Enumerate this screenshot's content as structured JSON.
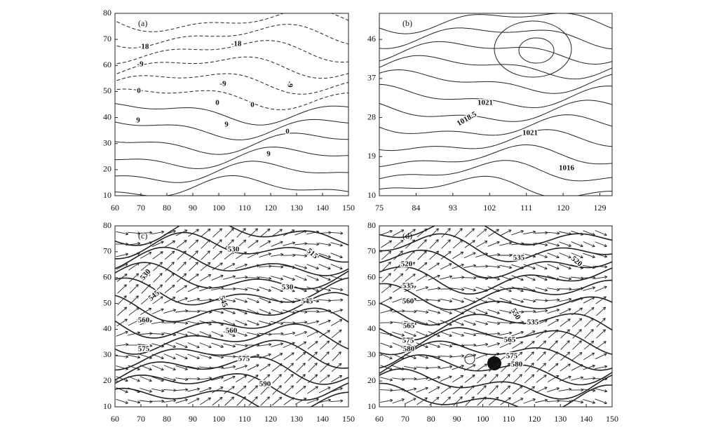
{
  "chart_data": [
    {
      "type": "contour",
      "panel_label": "(a)",
      "xlim": [
        60,
        150
      ],
      "ylim": [
        10,
        80
      ],
      "xticks": [
        60,
        70,
        80,
        90,
        100,
        110,
        120,
        130,
        140,
        150
      ],
      "yticks": [
        10,
        20,
        30,
        40,
        50,
        60,
        70,
        80
      ],
      "contour_labels": [
        -18,
        -18,
        -9,
        -9,
        -9,
        0,
        0,
        0,
        9,
        9,
        0,
        9
      ]
    },
    {
      "type": "contour",
      "panel_label": "(b)",
      "xlim": [
        75,
        132
      ],
      "ylim": [
        10,
        52
      ],
      "xticks": [
        75,
        84,
        93,
        102,
        111,
        120,
        129
      ],
      "yticks": [
        10,
        19,
        28,
        37,
        46
      ],
      "contour_labels": [
        1021,
        1018.5,
        1021,
        1016
      ]
    },
    {
      "type": "contour",
      "panel_label": "(c)",
      "xlim": [
        60,
        150
      ],
      "ylim": [
        10,
        80
      ],
      "xticks": [
        60,
        70,
        80,
        90,
        100,
        110,
        120,
        130,
        140,
        150
      ],
      "yticks": [
        10,
        20,
        30,
        40,
        50,
        60,
        70,
        80
      ],
      "contour_labels": [
        530,
        515,
        530,
        545,
        530,
        545,
        545,
        560,
        560,
        575,
        575,
        590
      ]
    },
    {
      "type": "contour",
      "panel_label": "(d)",
      "xlim": [
        60,
        150
      ],
      "ylim": [
        10,
        80
      ],
      "xticks": [
        60,
        70,
        80,
        90,
        100,
        110,
        120,
        130,
        140,
        150
      ],
      "yticks": [
        10,
        20,
        30,
        40,
        50,
        60,
        70,
        80
      ],
      "contour_labels": [
        520,
        535,
        520,
        535,
        560,
        550,
        535,
        565,
        565,
        575,
        580,
        575,
        580
      ]
    }
  ]
}
